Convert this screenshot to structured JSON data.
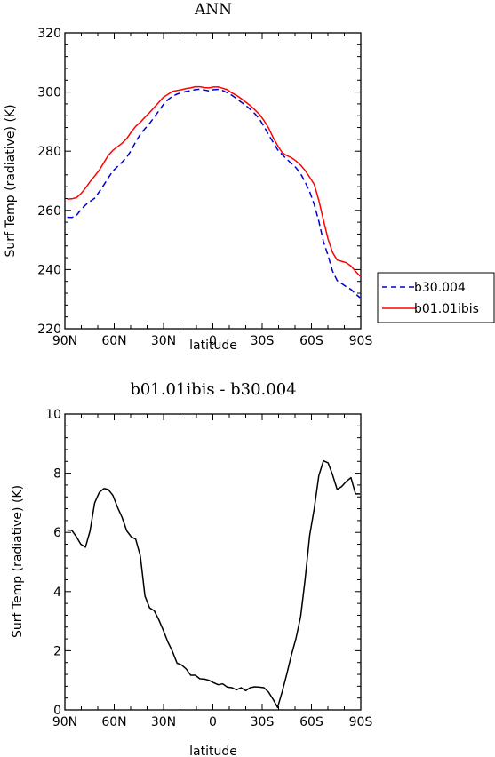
{
  "chart_data": [
    {
      "type": "line",
      "title": "ANN",
      "xlabel": "latitude",
      "ylabel": "Surf Temp (radiative) (K)",
      "xlim": [
        90,
        -90
      ],
      "ylim": [
        220,
        320
      ],
      "xticks": [
        {
          "value": 90,
          "label": "90N"
        },
        {
          "value": 60,
          "label": "60N"
        },
        {
          "value": 30,
          "label": "30N"
        },
        {
          "value": 0,
          "label": "0"
        },
        {
          "value": -30,
          "label": "30S"
        },
        {
          "value": -60,
          "label": "60S"
        },
        {
          "value": -90,
          "label": "90S"
        }
      ],
      "yticks": [
        220,
        240,
        260,
        280,
        300,
        320
      ],
      "legend_position": "right",
      "series": [
        {
          "name": "b30.004",
          "color": "#0000cc",
          "dash": "dashed",
          "x": [
            88.6,
            85.8,
            83,
            80.3,
            77.5,
            74.7,
            71.9,
            69.1,
            66.3,
            63.6,
            60.8,
            58,
            55.2,
            52.4,
            49.6,
            46.9,
            44.1,
            41.3,
            38.5,
            35.7,
            32.9,
            30.2,
            27.4,
            24.6,
            21.8,
            19,
            16.2,
            13.5,
            10.7,
            7.9,
            5.1,
            2.3,
            -0.5,
            -3.3,
            -6,
            -8.8,
            -11.6,
            -14.4,
            -17.2,
            -20,
            -22.7,
            -25.5,
            -28.3,
            -31.1,
            -33.9,
            -36.7,
            -39.4,
            -42.2,
            -45,
            -47.8,
            -50.6,
            -53.4,
            -56.1,
            -58.9,
            -61.7,
            -64.5,
            -67.3,
            -70.1,
            -72.8,
            -75.6,
            -78.4,
            -81.2,
            -84,
            -86.8,
            -89.5
          ],
          "values": [
            257.7,
            257.6,
            258.3,
            260.2,
            261.8,
            263,
            264.1,
            266.3,
            268.6,
            271,
            273.3,
            274.8,
            276.3,
            278,
            280.3,
            283.2,
            285.7,
            287.6,
            289.4,
            291.5,
            293.6,
            295.7,
            297.4,
            298.6,
            299.3,
            299.8,
            300.2,
            300.5,
            300.8,
            301,
            300.7,
            300.4,
            300.8,
            300.9,
            300.5,
            299.8,
            298.9,
            297.8,
            296.6,
            295.5,
            294.2,
            292.7,
            290.9,
            288.4,
            285.6,
            283,
            280.5,
            278.8,
            277.3,
            275.9,
            274.4,
            272.4,
            269.6,
            266.3,
            262,
            256.3,
            249.5,
            244.7,
            239.5,
            236.3,
            235.3,
            234.2,
            233.3,
            231.8,
            230.5
          ]
        },
        {
          "name": "b01.01ibis",
          "color": "#ff0000",
          "dash": "solid",
          "x": [
            88.6,
            85.8,
            83,
            80.3,
            77.5,
            74.7,
            71.9,
            69.1,
            66.3,
            63.6,
            60.8,
            58,
            55.2,
            52.4,
            49.6,
            46.9,
            44.1,
            41.3,
            38.5,
            35.7,
            32.9,
            30.2,
            27.4,
            24.6,
            21.8,
            19,
            16.2,
            13.5,
            10.7,
            7.9,
            5.1,
            2.3,
            -0.5,
            -3.3,
            -6,
            -8.8,
            -11.6,
            -14.4,
            -17.2,
            -20,
            -22.7,
            -25.5,
            -28.3,
            -31.1,
            -33.9,
            -36.7,
            -39.4,
            -42.2,
            -45,
            -47.8,
            -50.6,
            -53.4,
            -56.1,
            -58.9,
            -61.7,
            -64.5,
            -67.3,
            -70.1,
            -72.8,
            -75.6,
            -78.4,
            -81.2,
            -84,
            -86.8,
            -89.5
          ],
          "values": [
            263.8,
            263.9,
            264.3,
            265.6,
            267.5,
            269.7,
            271.6,
            273.6,
            276.1,
            278.6,
            280.3,
            281.5,
            282.7,
            284.3,
            286.5,
            288.4,
            289.8,
            291.5,
            293.1,
            294.8,
            296.5,
            298.2,
            299.2,
            300.2,
            300.5,
            300.8,
            301.2,
            301.4,
            301.8,
            301.8,
            301.5,
            301.4,
            301.7,
            301.7,
            301.3,
            300.8,
            299.7,
            298.9,
            297.8,
            296.6,
            295.5,
            294,
            292.5,
            290.4,
            287.9,
            284.6,
            281.9,
            279.5,
            278.5,
            277.8,
            276.7,
            275.3,
            273.5,
            271.2,
            268.8,
            263.4,
            256.7,
            250.3,
            245.8,
            243.2,
            242.8,
            242.3,
            241.2,
            239.4,
            237.8
          ]
        }
      ]
    },
    {
      "type": "line",
      "title": "b01.01ibis - b30.004",
      "xlabel": "latitude",
      "ylabel": "Surf Temp (radiative) (K)",
      "xlim": [
        90,
        -90
      ],
      "ylim": [
        0,
        10
      ],
      "xticks": [
        {
          "value": 90,
          "label": "90N"
        },
        {
          "value": 60,
          "label": "60N"
        },
        {
          "value": 30,
          "label": "30N"
        },
        {
          "value": 0,
          "label": "0"
        },
        {
          "value": -30,
          "label": "30S"
        },
        {
          "value": -60,
          "label": "60S"
        },
        {
          "value": -90,
          "label": "90S"
        }
      ],
      "yticks": [
        0,
        2,
        4,
        6,
        8,
        10
      ],
      "series": [
        {
          "color": "#000000",
          "dash": "solid",
          "x": [
            88.6,
            85.8,
            83,
            80.3,
            77.5,
            74.7,
            71.9,
            69.1,
            66.3,
            63.6,
            60.8,
            58,
            55.2,
            52.4,
            49.6,
            46.9,
            44.1,
            41.3,
            38.5,
            35.7,
            32.9,
            30.2,
            27.4,
            24.6,
            21.8,
            19,
            16.2,
            13.5,
            10.7,
            7.9,
            5.1,
            2.3,
            -0.5,
            -3.3,
            -6,
            -8.8,
            -11.6,
            -14.4,
            -17.2,
            -20,
            -22.7,
            -25.5,
            -28.3,
            -31.1,
            -33.9,
            -36.7,
            -39.4,
            -42.2,
            -45,
            -47.8,
            -50.6,
            -53.4,
            -56.1,
            -58.9,
            -61.7,
            -64.5,
            -67.3,
            -70.1,
            -72.8,
            -75.6,
            -78.4,
            -81.2,
            -84,
            -86.8,
            -89.5
          ],
          "values": [
            6.08,
            6.07,
            5.85,
            5.6,
            5.5,
            6.05,
            7.0,
            7.35,
            7.48,
            7.45,
            7.25,
            6.85,
            6.5,
            6.05,
            5.85,
            5.77,
            5.2,
            3.85,
            3.45,
            3.35,
            3.05,
            2.7,
            2.3,
            1.98,
            1.58,
            1.52,
            1.38,
            1.17,
            1.17,
            1.05,
            1.04,
            1.0,
            0.92,
            0.85,
            0.88,
            0.77,
            0.75,
            0.68,
            0.75,
            0.65,
            0.75,
            0.78,
            0.77,
            0.75,
            0.6,
            0.35,
            0.08,
            0.62,
            1.22,
            1.85,
            2.42,
            3.15,
            4.4,
            5.9,
            6.8,
            7.92,
            8.42,
            8.35,
            7.95,
            7.45,
            7.55,
            7.72,
            7.85,
            7.3,
            7.3
          ]
        }
      ]
    }
  ]
}
